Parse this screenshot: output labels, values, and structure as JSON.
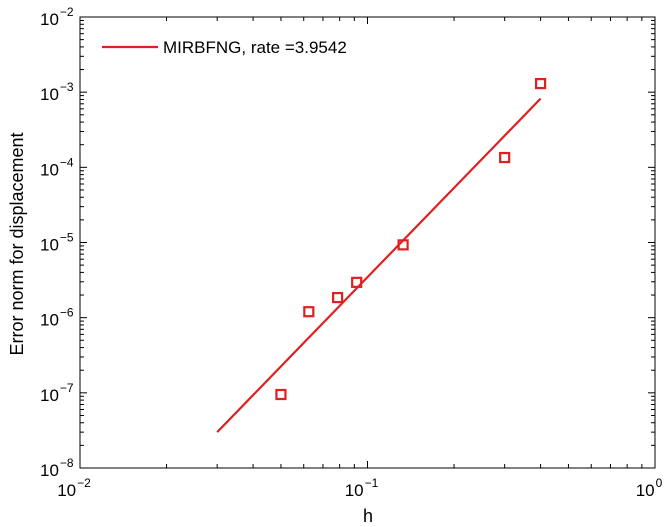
{
  "chart_data": {
    "type": "scatter",
    "title": "",
    "xlabel": "h",
    "ylabel": "Error norm for displacement",
    "x_scale": "log",
    "y_scale": "log",
    "xlim": [
      0.01,
      1
    ],
    "ylim": [
      1e-08,
      0.01
    ],
    "x_ticks": [
      {
        "value": 0.01,
        "base": "10",
        "exp": "−2"
      },
      {
        "value": 0.1,
        "base": "10",
        "exp": "−1"
      },
      {
        "value": 1,
        "base": "10",
        "exp": "0"
      }
    ],
    "y_ticks": [
      {
        "value": 1e-08,
        "base": "10",
        "exp": "−8"
      },
      {
        "value": 1e-07,
        "base": "10",
        "exp": "−7"
      },
      {
        "value": 1e-06,
        "base": "10",
        "exp": "−6"
      },
      {
        "value": 1e-05,
        "base": "10",
        "exp": "−5"
      },
      {
        "value": 0.0001,
        "base": "10",
        "exp": "−4"
      },
      {
        "value": 0.001,
        "base": "10",
        "exp": "−3"
      },
      {
        "value": 0.01,
        "base": "10",
        "exp": "−2"
      }
    ],
    "grid": false,
    "legend_position": "top-left",
    "legend": [
      {
        "label": "MIRBFNG, rate =3.9542",
        "color": "#e02020"
      }
    ],
    "series": [
      {
        "kind": "markers",
        "marker": "square",
        "color": "#e02020",
        "points": [
          {
            "x": 0.05,
            "y": 9.5e-08
          },
          {
            "x": 0.0625,
            "y": 1.2e-06
          },
          {
            "x": 0.0787,
            "y": 1.85e-06
          },
          {
            "x": 0.0917,
            "y": 2.95e-06
          },
          {
            "x": 0.133,
            "y": 9.3e-06
          },
          {
            "x": 0.3,
            "y": 0.000135
          },
          {
            "x": 0.4,
            "y": 0.0013
          }
        ]
      },
      {
        "kind": "line",
        "color": "#e02020",
        "points": [
          {
            "x": 0.03,
            "y": 3e-08
          },
          {
            "x": 0.4,
            "y": 0.00082
          }
        ]
      }
    ]
  }
}
